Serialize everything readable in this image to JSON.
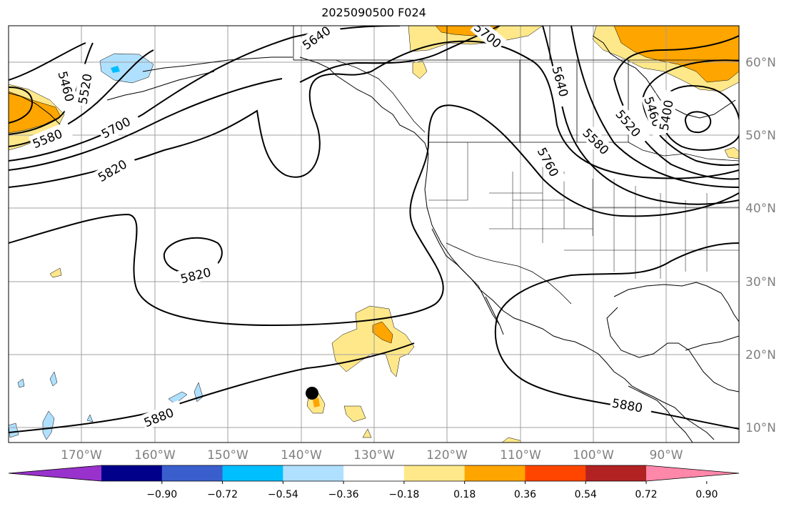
{
  "title": "2025090500 F024",
  "lat_labels": [
    "60°N",
    "50°N",
    "40°N",
    "30°N",
    "20°N",
    "10°N"
  ],
  "lon_labels": [
    "170°W",
    "160°W",
    "150°W",
    "140°W",
    "130°W",
    "120°W",
    "110°W",
    "100°W",
    "90°W"
  ],
  "contour_labels": [
    "5460",
    "5520",
    "5580",
    "5640",
    "5700",
    "5760",
    "5820",
    "5880"
  ],
  "colorbar": {
    "tick_labels": [
      "−0.90",
      "−0.72",
      "−0.54",
      "−0.36",
      "−0.18",
      "0.18",
      "0.36",
      "0.54",
      "0.72",
      "0.90"
    ],
    "colors": [
      "#9932cc",
      "#00008b",
      "#3a5fcd",
      "#00bfff",
      "#b0e0ff",
      "#ffffff",
      "#ffe88a",
      "#ffa500",
      "#ff4500",
      "#b22222",
      "#ff88aa"
    ]
  }
}
